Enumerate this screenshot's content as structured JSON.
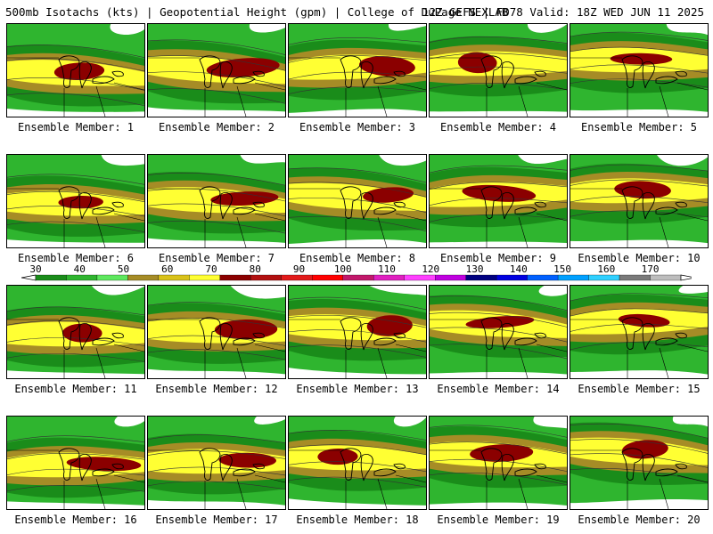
{
  "header": {
    "left": "500mb Isotachs (kts) | Geopotential Height (gpm) | College of DuPage NEXLAB",
    "right": "12Z GEFS | F078 Valid: 18Z WED JUN 11 2025"
  },
  "colorbar": {
    "tick_labels": [
      "30",
      "40",
      "50",
      "60",
      "70",
      "80",
      "90",
      "100",
      "110",
      "120",
      "130",
      "140",
      "150",
      "160",
      "170"
    ],
    "colors": [
      "#1a8c1a",
      "#2fb52f",
      "#5ee85e",
      "#a68c26",
      "#d9c21a",
      "#ffff33",
      "#8b0000",
      "#b21010",
      "#e21a1a",
      "#ff0000",
      "#c2186b",
      "#e020c0",
      "#ff40ff",
      "#c000e0",
      "#000080",
      "#0000e0",
      "#0060ff",
      "#00a0ff",
      "#30d0ff",
      "#7a7a7a",
      "#bdbdbd"
    ]
  },
  "members": [
    {
      "label": "Ensemble Member: 1"
    },
    {
      "label": "Ensemble Member: 2"
    },
    {
      "label": "Ensemble Member: 3"
    },
    {
      "label": "Ensemble Member: 4"
    },
    {
      "label": "Ensemble Member: 5"
    },
    {
      "label": "Ensemble Member: 6"
    },
    {
      "label": "Ensemble Member: 7"
    },
    {
      "label": "Ensemble Member: 8"
    },
    {
      "label": "Ensemble Member: 9"
    },
    {
      "label": "Ensemble Member: 10"
    },
    {
      "label": "Ensemble Member: 11"
    },
    {
      "label": "Ensemble Member: 12"
    },
    {
      "label": "Ensemble Member: 13"
    },
    {
      "label": "Ensemble Member: 14"
    },
    {
      "label": "Ensemble Member: 15"
    },
    {
      "label": "Ensemble Member: 16"
    },
    {
      "label": "Ensemble Member: 17"
    },
    {
      "label": "Ensemble Member: 18"
    },
    {
      "label": "Ensemble Member: 19"
    },
    {
      "label": "Ensemble Member: 20"
    }
  ],
  "legend_colors": {
    "light_green": "#2fb52f",
    "dark_green": "#1a8c1a",
    "bright_green": "#5ee85e",
    "olive": "#a68c26",
    "yellow": "#ffff33",
    "dark_red": "#8b0000"
  }
}
